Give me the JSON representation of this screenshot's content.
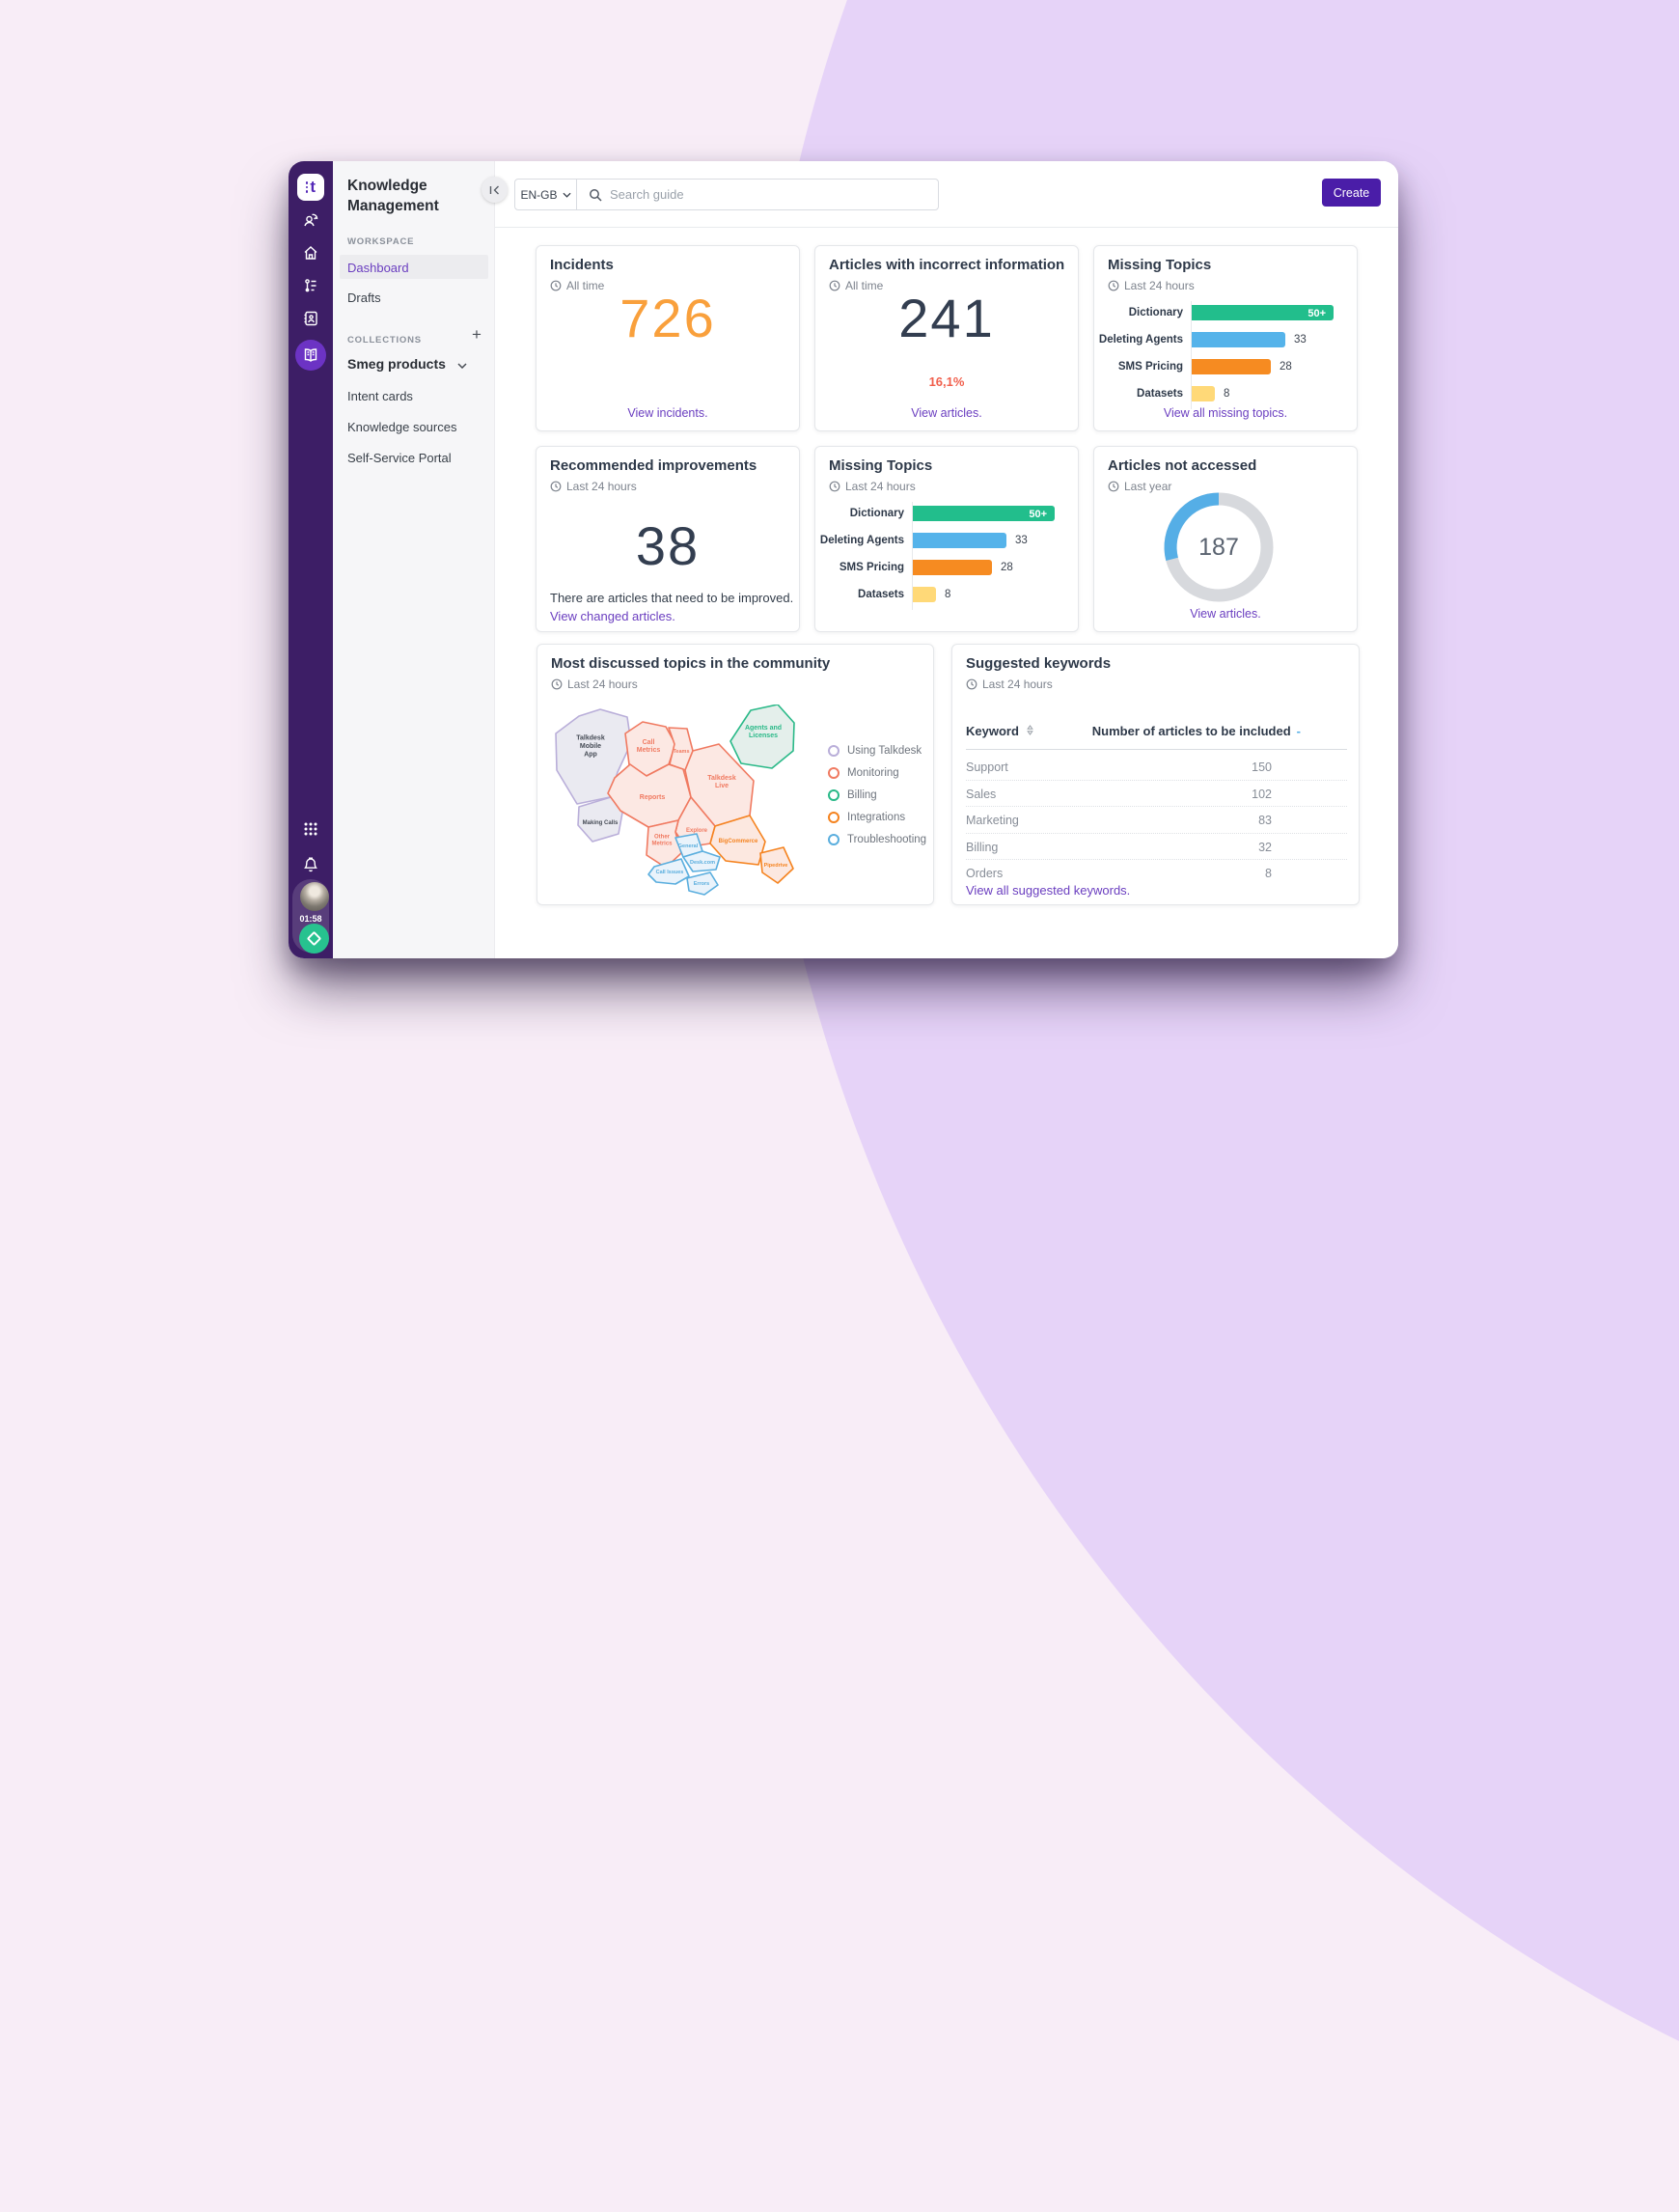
{
  "topbar": {
    "language": "EN-GB",
    "search_placeholder": "Search guide",
    "create_label": "Create"
  },
  "sidebar": {
    "title": "Knowledge Management",
    "workspace_label": "WORKSPACE",
    "workspace_items": [
      {
        "label": "Dashboard",
        "active": true
      },
      {
        "label": "Drafts",
        "active": false
      }
    ],
    "collections_label": "COLLECTIONS",
    "collection_name": "Smeg products",
    "collection_items": [
      "Intent cards",
      "Knowledge sources",
      "Self-Service Portal"
    ]
  },
  "rail": {
    "timer": "01:58"
  },
  "cards": {
    "incidents": {
      "title": "Incidents",
      "period": "All time",
      "value": "726",
      "link": "View incidents.",
      "accent": "#F9A03C"
    },
    "incorrect": {
      "title": "Articles with incorrect information",
      "period": "All time",
      "value": "241",
      "percent": "16,1%",
      "link": "View articles."
    },
    "missing1": {
      "title": "Missing Topics",
      "period": "Last 24 hours",
      "link": "View all missing topics."
    },
    "recommended": {
      "title": "Recommended improvements",
      "period": "Last 24 hours",
      "value": "38",
      "note": "There are articles that need to be improved.",
      "link": "View changed articles."
    },
    "missing2": {
      "title": "Missing Topics",
      "period": "Last 24 hours"
    },
    "not_accessed": {
      "title": "Articles not accessed",
      "period": "Last year",
      "link": "View articles."
    },
    "community": {
      "title": "Most discussed topics in the community",
      "period": "Last 24 hours"
    },
    "keywords": {
      "title": "Suggested keywords",
      "period": "Last 24 hours",
      "link": "View all suggested keywords."
    }
  },
  "chart_data": [
    {
      "id": "missing-topics",
      "type": "bar",
      "categories": [
        "Dictionary",
        "Deleting Agents",
        "SMS Pricing",
        "Datasets"
      ],
      "values": [
        50,
        33,
        28,
        8
      ],
      "value_labels": [
        "50+",
        "33",
        "28",
        "8"
      ],
      "colors": [
        "#22BE8C",
        "#55B3EA",
        "#F68B21",
        "#FFD978"
      ],
      "xlim": [
        0,
        50
      ],
      "label_inside": [
        true,
        false,
        false,
        false
      ]
    },
    {
      "id": "articles-not-accessed",
      "type": "donut",
      "value": "187",
      "fraction": 0.29,
      "color": "#55AEE6",
      "track_color": "#D7D9DD"
    },
    {
      "id": "community-map",
      "type": "area-map",
      "legend": [
        {
          "label": "Using Talkdesk",
          "color": "#B9AED9"
        },
        {
          "label": "Monitoring",
          "color": "#F07A61"
        },
        {
          "label": "Billing",
          "color": "#2AB988"
        },
        {
          "label": "Integrations",
          "color": "#F5831F"
        },
        {
          "label": "Troubleshooting",
          "color": "#5AAEDE"
        }
      ],
      "cells": [
        {
          "name": "Talkdesk Mobile App",
          "category": "Using Talkdesk"
        },
        {
          "name": "Making Calls",
          "category": "Using Talkdesk"
        },
        {
          "name": "Call Metrics",
          "category": "Monitoring"
        },
        {
          "name": "Teams",
          "category": "Monitoring"
        },
        {
          "name": "Reports",
          "category": "Monitoring"
        },
        {
          "name": "Talkdesk Live",
          "category": "Monitoring"
        },
        {
          "name": "Explore",
          "category": "Monitoring"
        },
        {
          "name": "Other Metrics",
          "category": "Monitoring"
        },
        {
          "name": "Agents and Licenses",
          "category": "Billing"
        },
        {
          "name": "BigCommerce",
          "category": "Integrations"
        },
        {
          "name": "Pipedrive",
          "category": "Integrations"
        },
        {
          "name": "General",
          "category": "Troubleshooting"
        },
        {
          "name": "Desk.com",
          "category": "Troubleshooting"
        },
        {
          "name": "Call Issues",
          "category": "Troubleshooting"
        },
        {
          "name": "Errors",
          "category": "Troubleshooting"
        }
      ]
    },
    {
      "id": "suggested-keywords",
      "type": "table",
      "columns": [
        "Keyword",
        "Number of articles to be included"
      ],
      "rows": [
        [
          "Support",
          150
        ],
        [
          "Sales",
          102
        ],
        [
          "Marketing",
          83
        ],
        [
          "Billing",
          32
        ],
        [
          "Orders",
          8
        ]
      ]
    }
  ]
}
